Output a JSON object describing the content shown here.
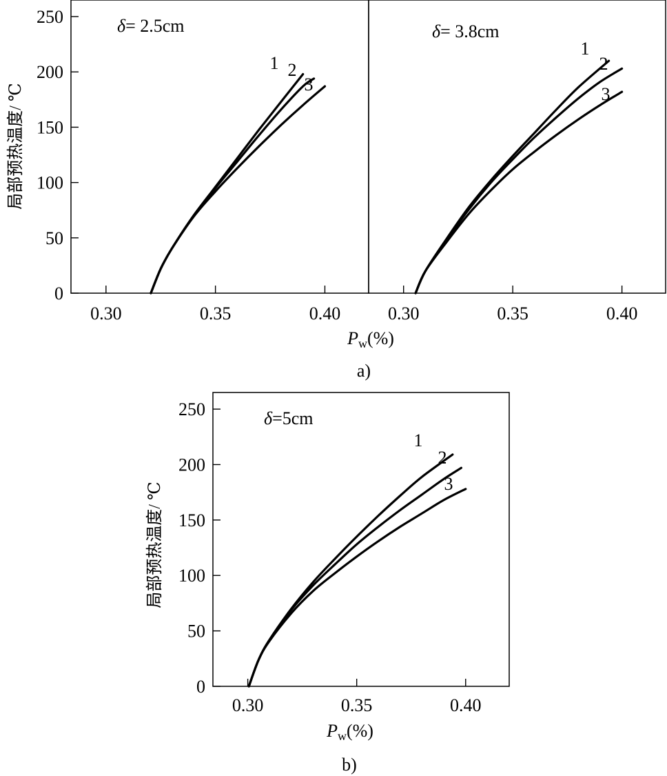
{
  "chart_data": [
    {
      "type": "line",
      "annotation": {
        "symbol": "δ",
        "text": "= 2.5cm"
      },
      "ylabel": "局部预热温度/ ℃",
      "xlim": [
        0.284,
        0.42
      ],
      "ylim": [
        0,
        265
      ],
      "xticks": [
        "0.30",
        "0.35",
        "0.40"
      ],
      "yticks": [
        "0",
        "50",
        "100",
        "150",
        "200",
        "250"
      ],
      "series": [
        {
          "name": "1",
          "x": [
            0.3205,
            0.325,
            0.33,
            0.34,
            0.35,
            0.36,
            0.37,
            0.38,
            0.39
          ],
          "y": [
            0,
            22,
            40,
            70,
            96,
            122,
            148,
            173,
            198
          ]
        },
        {
          "name": "2",
          "x": [
            0.3205,
            0.325,
            0.33,
            0.34,
            0.35,
            0.36,
            0.37,
            0.38,
            0.39,
            0.395
          ],
          "y": [
            0,
            22,
            40,
            70,
            95,
            119,
            143,
            166,
            187,
            194
          ]
        },
        {
          "name": "3",
          "x": [
            0.3205,
            0.325,
            0.33,
            0.34,
            0.35,
            0.36,
            0.37,
            0.38,
            0.39,
            0.4
          ],
          "y": [
            0,
            22,
            40,
            69,
            92,
            113,
            133,
            152,
            170,
            187
          ]
        }
      ]
    },
    {
      "type": "line",
      "annotation": {
        "symbol": "δ",
        "text": "= 3.8cm"
      },
      "xlabel": "P",
      "xlabel_sub": "w",
      "xlabel_tail": "(%)",
      "caption": "a)",
      "xlim": [
        0.284,
        0.42
      ],
      "ylim": [
        0,
        265
      ],
      "xticks": [
        "0.30",
        "0.35",
        "0.40"
      ],
      "series": [
        {
          "name": "1",
          "x": [
            0.3055,
            0.31,
            0.32,
            0.33,
            0.34,
            0.35,
            0.36,
            0.37,
            0.38,
            0.394
          ],
          "y": [
            0,
            20,
            50,
            78,
            102,
            124,
            145,
            166,
            186,
            210
          ]
        },
        {
          "name": "2",
          "x": [
            0.3055,
            0.31,
            0.32,
            0.33,
            0.34,
            0.35,
            0.36,
            0.37,
            0.38,
            0.39,
            0.4
          ],
          "y": [
            0,
            20,
            49,
            76,
            100,
            121,
            141,
            159,
            176,
            191,
            203
          ]
        },
        {
          "name": "3",
          "x": [
            0.3055,
            0.31,
            0.32,
            0.33,
            0.34,
            0.35,
            0.36,
            0.37,
            0.38,
            0.39,
            0.4
          ],
          "y": [
            0,
            20,
            47,
            72,
            93,
            112,
            128,
            143,
            157,
            170,
            182
          ]
        }
      ]
    },
    {
      "type": "line",
      "annotation": {
        "symbol": "δ",
        "text": "=5cm"
      },
      "ylabel": "局部预热温度/ ℃",
      "xlabel": "P",
      "xlabel_sub": "w",
      "xlabel_tail": "(%)",
      "caption": "b)",
      "xlim": [
        0.284,
        0.42
      ],
      "ylim": [
        0,
        265
      ],
      "xticks": [
        "0.30",
        "0.35",
        "0.40"
      ],
      "yticks": [
        "0",
        "50",
        "100",
        "150",
        "200",
        "250"
      ],
      "series": [
        {
          "name": "1",
          "x": [
            0.3005,
            0.305,
            0.31,
            0.32,
            0.33,
            0.34,
            0.35,
            0.36,
            0.37,
            0.38,
            0.394
          ],
          "y": [
            0,
            24,
            42,
            70,
            94,
            115,
            135,
            154,
            172,
            189,
            209
          ]
        },
        {
          "name": "2",
          "x": [
            0.3005,
            0.305,
            0.31,
            0.32,
            0.33,
            0.34,
            0.35,
            0.36,
            0.37,
            0.38,
            0.39,
            0.398
          ],
          "y": [
            0,
            24,
            42,
            69,
            91,
            110,
            128,
            144,
            159,
            173,
            187,
            197
          ]
        },
        {
          "name": "3",
          "x": [
            0.3005,
            0.305,
            0.31,
            0.32,
            0.33,
            0.34,
            0.35,
            0.36,
            0.37,
            0.38,
            0.39,
            0.4
          ],
          "y": [
            0,
            24,
            41,
            66,
            86,
            102,
            117,
            131,
            144,
            156,
            168,
            178
          ]
        }
      ]
    }
  ]
}
